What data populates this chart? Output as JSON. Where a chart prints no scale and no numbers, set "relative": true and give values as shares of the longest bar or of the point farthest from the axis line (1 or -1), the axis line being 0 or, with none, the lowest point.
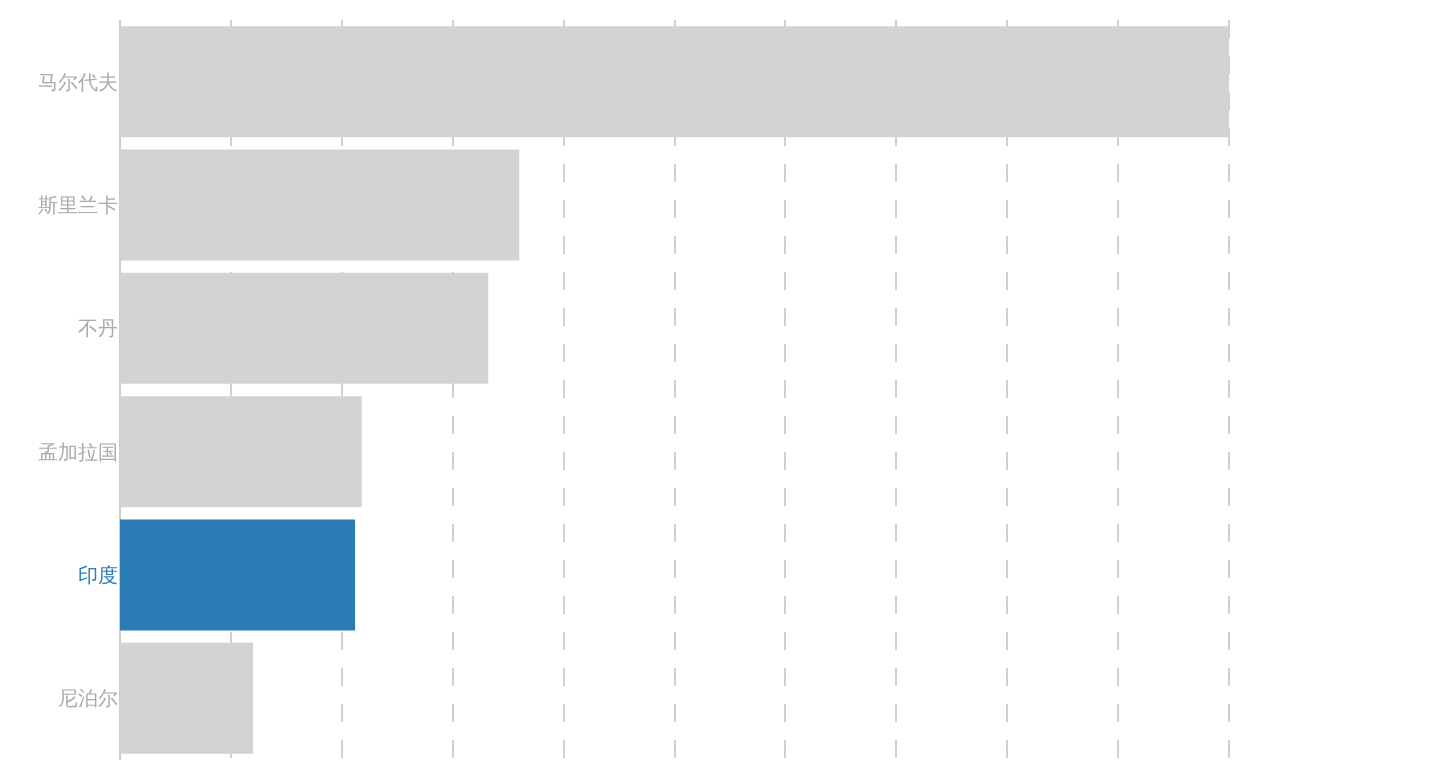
{
  "chart_data": {
    "type": "bar",
    "orientation": "horizontal",
    "relative": true,
    "grid": "x",
    "categories": [
      "马尔代夫",
      "斯里兰卡",
      "不丹",
      "孟加拉国",
      "印度",
      "尼泊尔"
    ],
    "values": [
      1,
      0.36,
      0.332,
      0.218,
      0.212,
      0.12
    ],
    "colors": [
      "#d3d3d3",
      "#d3d3d3",
      "#d3d3d3",
      "#d3d3d3",
      "#2b7bb5",
      "#d3d3d3"
    ]
  }
}
